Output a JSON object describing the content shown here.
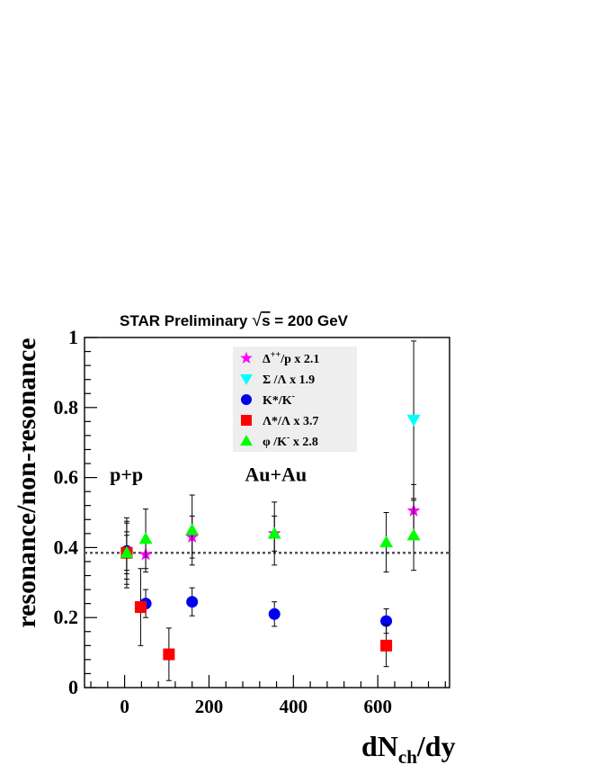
{
  "chart_data": {
    "type": "scatter",
    "title": "STAR Preliminary √s = 200 GeV",
    "title_parts": {
      "prefix": "STAR Preliminary ",
      "sqrt": "√",
      "var": "s",
      "suffix": " = 200 GeV"
    },
    "ylabel": "resonance/non-resonance",
    "xlabel": {
      "main": "dN",
      "sub": "ch",
      "tail": "/dy"
    },
    "xlim": [
      -95,
      770
    ],
    "ylim": [
      0,
      1.0
    ],
    "x_ticks": [
      "0",
      "200",
      "400",
      "600"
    ],
    "x_tick_values": [
      0,
      200,
      400,
      600
    ],
    "y_ticks": [
      "0",
      "0.2",
      "0.4",
      "0.6",
      "0.8",
      "1"
    ],
    "y_tick_values": [
      0,
      0.2,
      0.4,
      0.6,
      0.8,
      1.0
    ],
    "reference_line": 0.385,
    "annotations": [
      {
        "text": "p+p",
        "x": -35,
        "y": 0.59
      },
      {
        "text": "Au+Au",
        "x": 285,
        "y": 0.59
      }
    ],
    "series": [
      {
        "name": "Δ++/p x 2.1",
        "marker": "star",
        "color": "#ff00ff",
        "points": [
          {
            "x": 5,
            "y": 0.385,
            "err": 0.09
          },
          {
            "x": 50,
            "y": 0.38,
            "err": 0.05
          },
          {
            "x": 160,
            "y": 0.43,
            "err": 0.06
          },
          {
            "x": 355,
            "y": 0.44,
            "err": 0.05
          },
          {
            "x": 685,
            "y": 0.505,
            "err": 0.075
          }
        ]
      },
      {
        "name": "Σ/Λ x 1.9",
        "marker": "triangle-down",
        "color": "#00ffff",
        "points": [
          {
            "x": 5,
            "y": 0.385,
            "err": 0.05
          },
          {
            "x": 685,
            "y": 0.765,
            "err": 0.225
          }
        ]
      },
      {
        "name": "K*/K-",
        "marker": "circle",
        "color": "#0000ee",
        "points": [
          {
            "x": 5,
            "y": 0.39,
            "err": 0.08
          },
          {
            "x": 50,
            "y": 0.24,
            "err": 0.04
          },
          {
            "x": 160,
            "y": 0.245,
            "err": 0.04
          },
          {
            "x": 355,
            "y": 0.21,
            "err": 0.035
          },
          {
            "x": 620,
            "y": 0.19,
            "err": 0.035
          }
        ]
      },
      {
        "name": "Λ*/Λ x 3.7",
        "marker": "square",
        "color": "#ff0000",
        "points": [
          {
            "x": 5,
            "y": 0.385,
            "err": 0.06
          },
          {
            "x": 38,
            "y": 0.23,
            "err": 0.11
          },
          {
            "x": 105,
            "y": 0.095,
            "err": 0.075
          },
          {
            "x": 620,
            "y": 0.12,
            "err": 0.06
          }
        ]
      },
      {
        "name": "φ/K- x 2.8",
        "marker": "triangle-up",
        "color": "#00ff00",
        "points": [
          {
            "x": 5,
            "y": 0.385,
            "err": 0.1
          },
          {
            "x": 50,
            "y": 0.425,
            "err": 0.085
          },
          {
            "x": 160,
            "y": 0.45,
            "err": 0.1
          },
          {
            "x": 355,
            "y": 0.44,
            "err": 0.09
          },
          {
            "x": 620,
            "y": 0.415,
            "err": 0.085
          },
          {
            "x": 685,
            "y": 0.435,
            "err": 0.1
          }
        ]
      }
    ],
    "legend": {
      "placement": "top-center",
      "background": "#eeeeee",
      "entries": [
        {
          "marker": "star",
          "color": "#ff00ff",
          "parts": [
            [
              "Δ",
              ""
            ],
            [
              "++",
              "sup"
            ],
            [
              "/p  x 2.1",
              ""
            ]
          ]
        },
        {
          "marker": "triangle-down",
          "color": "#00ffff",
          "parts": [
            [
              "Σ /Λ   x 1.9",
              ""
            ]
          ]
        },
        {
          "marker": "circle",
          "color": "#0000ee",
          "parts": [
            [
              "K*/K",
              ""
            ],
            [
              "-",
              "sup"
            ]
          ]
        },
        {
          "marker": "square",
          "color": "#ff0000",
          "parts": [
            [
              "Λ*/Λ  x 3.7",
              ""
            ]
          ]
        },
        {
          "marker": "triangle-up",
          "color": "#00ff00",
          "parts": [
            [
              "φ /K",
              ""
            ],
            [
              "-",
              "sup"
            ],
            [
              "  x 2.8",
              ""
            ]
          ]
        }
      ]
    }
  }
}
